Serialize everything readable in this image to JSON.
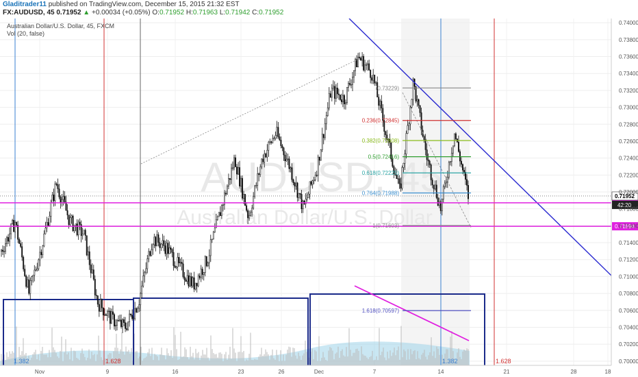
{
  "header": {
    "author": "Gladitrader11",
    "published": "published on TradingView.com, December 15, 2015 21:32 EST",
    "symbol": "FX:AUDUSD, 45",
    "last": "0.71952",
    "change_arrow": "▲",
    "change": "+0.00034 (+0.05%)",
    "o_label": "O:",
    "o_val": "0.71952",
    "h_label": "H:",
    "h_val": "0.71963",
    "l_label": "L:",
    "l_val": "0.71942",
    "c_label": "C:",
    "c_val": "0.71952"
  },
  "chart_data": {
    "type": "candlestick",
    "title": "Australian Dollar/U.S. Dollar, 45, FXCM",
    "subtitle": "Vol (20, false)",
    "watermark_symbol": "AUDUSD, 45",
    "watermark_name": "Australian Dollar/U.S. Dollar",
    "ylim": [
      0.6995,
      0.7405
    ],
    "y_ticks": [
      "0.74000",
      "0.73800",
      "0.73600",
      "0.73400",
      "0.73200",
      "0.73000",
      "0.72800",
      "0.72600",
      "0.72400",
      "0.72200",
      "0.72000",
      "0.71800",
      "0.71600",
      "0.71400",
      "0.71200",
      "0.71000",
      "0.70800",
      "0.70600",
      "0.70400",
      "0.70200",
      "0.70000"
    ],
    "x_ticks": [
      "Nov",
      "9",
      "16",
      "23",
      "26",
      "Dec",
      "7",
      "14",
      "21",
      "28",
      "18"
    ],
    "price_series": [
      [
        "Oct 28",
        0.713
      ],
      [
        "Oct 29",
        0.7165
      ],
      [
        "Oct 30",
        0.708
      ],
      [
        "Nov 2",
        0.714
      ],
      [
        "Nov 3",
        0.721
      ],
      [
        "Nov 4",
        0.7165
      ],
      [
        "Nov 5",
        0.715
      ],
      [
        "Nov 6",
        0.707
      ],
      [
        "Nov 9",
        0.705
      ],
      [
        "Nov 10",
        0.704
      ],
      [
        "Nov 11",
        0.707
      ],
      [
        "Nov 12",
        0.7145
      ],
      [
        "Nov 13",
        0.7135
      ],
      [
        "Nov 16",
        0.711
      ],
      [
        "Nov 17",
        0.709
      ],
      [
        "Nov 18",
        0.712
      ],
      [
        "Nov 19",
        0.718
      ],
      [
        "Nov 20",
        0.724
      ],
      [
        "Nov 23",
        0.717
      ],
      [
        "Nov 24",
        0.724
      ],
      [
        "Nov 25",
        0.727
      ],
      [
        "Nov 26",
        0.723
      ],
      [
        "Nov 27",
        0.718
      ],
      [
        "Nov 30",
        0.723
      ],
      [
        "Dec 1",
        0.732
      ],
      [
        "Dec 2",
        0.731
      ],
      [
        "Dec 3",
        0.736
      ],
      [
        "Dec 4",
        0.734
      ],
      [
        "Dec 7",
        0.727
      ],
      [
        "Dec 8",
        0.72
      ],
      [
        "Dec 9",
        0.733
      ],
      [
        "Dec 10",
        0.724
      ],
      [
        "Dec 11",
        0.718
      ],
      [
        "Dec 14",
        0.727
      ],
      [
        "Dec 15",
        0.7195
      ]
    ],
    "last_price_label": "0.71952",
    "countdown_label": "42:20",
    "support_levels": [
      {
        "label": "0.71871",
        "value": 0.71871,
        "color": "#e020e0"
      },
      {
        "label": "0.71594",
        "value": 0.71594,
        "color": "#e020e0"
      }
    ],
    "fibonacci": [
      {
        "label": "(0.73229)",
        "value": 0.73229,
        "color": "#888888"
      },
      {
        "label": "0.236(0.72845)",
        "value": 0.72845,
        "color": "#d03030"
      },
      {
        "label": "0.382(0.72608)",
        "value": 0.72608,
        "color": "#8cbd1e"
      },
      {
        "label": "0.5(0.72416)",
        "value": 0.72416,
        "color": "#2e9e2e"
      },
      {
        "label": "0.618(0.72225)",
        "value": 0.72225,
        "color": "#2aa5a5"
      },
      {
        "label": "0.764(0.71988)",
        "value": 0.71988,
        "color": "#3a8fd0"
      },
      {
        "label": "1(0.71603)",
        "value": 0.71603,
        "color": "#888888"
      },
      {
        "label": "1.618(0.70597)",
        "value": 0.70597,
        "color": "#5050c0"
      }
    ],
    "cycle_labels": [
      "1.382",
      "1.628",
      "1.382",
      "1.628"
    ],
    "colors": {
      "up_trendline": "#2a2ad0",
      "support": "#e020e0",
      "fib_382": "#8cbd1e",
      "volume": "#9fd4ea"
    }
  }
}
